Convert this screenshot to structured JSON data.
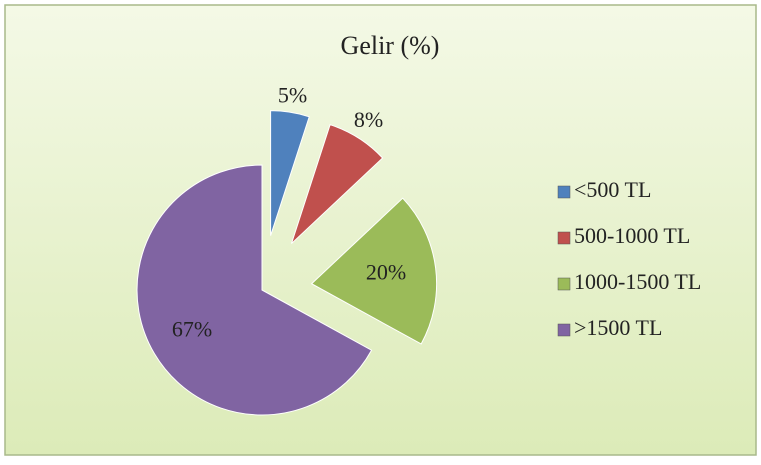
{
  "chart_data": {
    "type": "pie",
    "title": "Gelir (%)",
    "categories": [
      "<500 TL",
      "500-1000 TL",
      "1000-1500 TL",
      ">1500 TL"
    ],
    "values": [
      5,
      8,
      20,
      67
    ],
    "value_labels": [
      "5%",
      "8%",
      "20%",
      "67%"
    ],
    "colors": [
      "#4f81bd",
      "#c0504d",
      "#9bbb59",
      "#8064a2"
    ],
    "legend": "right"
  }
}
